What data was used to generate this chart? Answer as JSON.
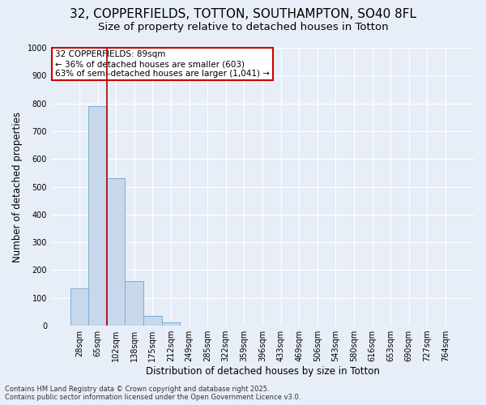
{
  "title_line1": "32, COPPERFIELDS, TOTTON, SOUTHAMPTON, SO40 8FL",
  "title_line2": "Size of property relative to detached houses in Totton",
  "xlabel": "Distribution of detached houses by size in Totton",
  "ylabel": "Number of detached properties",
  "bar_color": "#c8d8ec",
  "bar_edge_color": "#7aadd4",
  "background_color": "#e8eef8",
  "plot_bg_color": "#e8eef8",
  "grid_color": "#ffffff",
  "categories": [
    "28sqm",
    "65sqm",
    "102sqm",
    "138sqm",
    "175sqm",
    "212sqm",
    "249sqm",
    "285sqm",
    "322sqm",
    "359sqm",
    "396sqm",
    "433sqm",
    "469sqm",
    "506sqm",
    "543sqm",
    "580sqm",
    "616sqm",
    "653sqm",
    "690sqm",
    "727sqm",
    "764sqm"
  ],
  "values": [
    135,
    790,
    530,
    160,
    35,
    11,
    0,
    0,
    0,
    0,
    0,
    0,
    0,
    0,
    0,
    0,
    0,
    0,
    0,
    0,
    0
  ],
  "ylim": [
    0,
    1000
  ],
  "yticks": [
    0,
    100,
    200,
    300,
    400,
    500,
    600,
    700,
    800,
    900,
    1000
  ],
  "red_line_x": 1.5,
  "annotation_text": "32 COPPERFIELDS: 89sqm\n← 36% of detached houses are smaller (603)\n63% of semi-detached houses are larger (1,041) →",
  "annotation_box_color": "#ffffff",
  "annotation_border_color": "#cc0000",
  "footer_line1": "Contains HM Land Registry data © Crown copyright and database right 2025.",
  "footer_line2": "Contains public sector information licensed under the Open Government Licence v3.0.",
  "title_fontsize": 11,
  "subtitle_fontsize": 9.5,
  "tick_fontsize": 7,
  "ylabel_fontsize": 8.5,
  "xlabel_fontsize": 8.5,
  "footer_fontsize": 6,
  "annot_fontsize": 7.5
}
